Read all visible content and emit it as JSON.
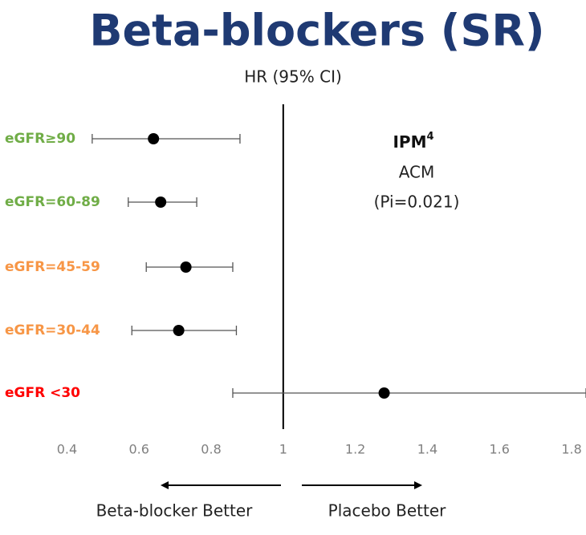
{
  "chart_data": {
    "type": "forest",
    "title": "Beta-blockers (SR)",
    "subtitle": "HR (95% CI)",
    "categories": [
      "eGFR≥90",
      "eGFR=60-89",
      "eGFR=45-59",
      "eGFR=30-44",
      "eGFR <30"
    ],
    "category_colors": [
      "#70ad47",
      "#70ad47",
      "#f79646",
      "#f79646",
      "#ff0000"
    ],
    "values": [
      0.64,
      0.66,
      0.73,
      0.71,
      1.28
    ],
    "ci_lower": [
      0.47,
      0.57,
      0.62,
      0.58,
      0.86
    ],
    "ci_upper": [
      0.88,
      0.76,
      0.86,
      0.87,
      1.84
    ],
    "xlim": [
      0.33,
      1.84
    ],
    "xticks": [
      0.4,
      0.6,
      0.8,
      1,
      1.2,
      1.4,
      1.6,
      1.8
    ],
    "reference": 1,
    "color": "#000000",
    "annotation": {
      "title": "IPM",
      "superscript": "4",
      "lines": [
        "ACM",
        "(Pi=0.021)"
      ]
    },
    "left_label": "Beta-blocker Better",
    "right_label": "Placebo Better"
  }
}
